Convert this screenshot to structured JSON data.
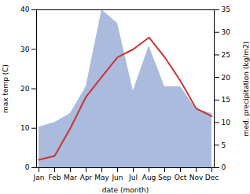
{
  "chart_data": {
    "type": "line",
    "categories": [
      "Jan",
      "Feb",
      "Mar",
      "Apr",
      "May",
      "Jun",
      "Jul",
      "Aug",
      "Sep",
      "Oct",
      "Nov",
      "Dec"
    ],
    "series": [
      {
        "type": "area",
        "axis": "y2",
        "color": "#aabbdd",
        "values": [
          9,
          10,
          12,
          18,
          35,
          32,
          17,
          27,
          18,
          18,
          13,
          12
        ]
      },
      {
        "type": "line",
        "color": "#cc3333",
        "values": [
          2,
          3,
          10,
          18,
          23,
          28,
          30,
          33,
          28,
          22,
          15,
          13
        ]
      }
    ],
    "xlabel": "date (month)",
    "ylabel": "max temp (C)",
    "y2label": "med. precipitation (kg/m2)",
    "ylim": [
      0,
      40
    ],
    "yticks": [
      0,
      10,
      20,
      30,
      40
    ],
    "y2lim": [
      0,
      35
    ],
    "y2ticks": [
      0,
      5,
      10,
      15,
      20,
      25,
      30,
      35
    ],
    "grid": false
  }
}
